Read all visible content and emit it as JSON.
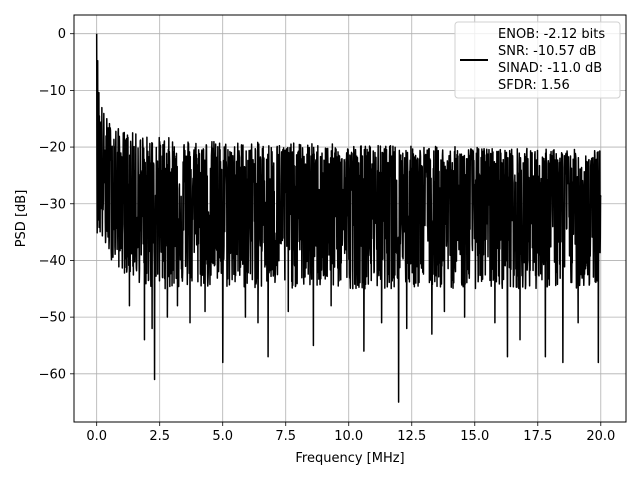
{
  "chart_data": {
    "type": "line",
    "title": "",
    "xlabel": "Frequency [MHz]",
    "ylabel": "PSD [dB]",
    "xlim": [
      -0.9,
      21.0
    ],
    "ylim": [
      -68.5,
      3.3
    ],
    "xticks": [
      0.0,
      2.5,
      5.0,
      7.5,
      10.0,
      12.5,
      15.0,
      17.5,
      20.0
    ],
    "xtick_labels": [
      "0.0",
      "2.5",
      "5.0",
      "7.5",
      "10.0",
      "12.5",
      "15.0",
      "17.5",
      "20.0"
    ],
    "yticks": [
      0,
      -10,
      -20,
      -30,
      -40,
      -50,
      -60
    ],
    "ytick_labels": [
      "0",
      "−10",
      "−20",
      "−30",
      "−40",
      "−50",
      "−60"
    ],
    "grid": true,
    "legend_position": "top-right",
    "series": [
      {
        "name": "ENOB: -2.12 bits\nSNR: -10.57 dB\nSINAD: -11.0 dB\nSFDR: 1.56",
        "color": "#000000",
        "n_points": 2048,
        "peak": {
          "x": 0.0,
          "y": 0.0
        },
        "envelope": [
          {
            "x": 0.0,
            "upper": 0.0,
            "mean": -12,
            "lower": -35
          },
          {
            "x": 0.1,
            "upper": -10,
            "mean": -22,
            "lower": -36
          },
          {
            "x": 0.3,
            "upper": -14,
            "mean": -26,
            "lower": -38
          },
          {
            "x": 0.6,
            "upper": -16,
            "mean": -28,
            "lower": -40
          },
          {
            "x": 1.0,
            "upper": -17,
            "mean": -29,
            "lower": -42
          },
          {
            "x": 2.0,
            "upper": -18,
            "mean": -30,
            "lower": -45
          },
          {
            "x": 5.0,
            "upper": -19,
            "mean": -30,
            "lower": -45
          },
          {
            "x": 10.0,
            "upper": -19.5,
            "mean": -30,
            "lower": -45
          },
          {
            "x": 15.0,
            "upper": -20,
            "mean": -30,
            "lower": -45
          },
          {
            "x": 20.0,
            "upper": -20.5,
            "mean": -30,
            "lower": -45
          }
        ],
        "deep_nulls": [
          {
            "x": 1.3,
            "y": -48
          },
          {
            "x": 1.9,
            "y": -54
          },
          {
            "x": 2.2,
            "y": -52
          },
          {
            "x": 2.3,
            "y": -61
          },
          {
            "x": 2.8,
            "y": -50
          },
          {
            "x": 3.2,
            "y": -48
          },
          {
            "x": 3.7,
            "y": -51
          },
          {
            "x": 4.3,
            "y": -49
          },
          {
            "x": 5.0,
            "y": -58
          },
          {
            "x": 5.9,
            "y": -50
          },
          {
            "x": 6.4,
            "y": -51
          },
          {
            "x": 6.8,
            "y": -57
          },
          {
            "x": 7.6,
            "y": -49
          },
          {
            "x": 8.6,
            "y": -55
          },
          {
            "x": 9.3,
            "y": -48
          },
          {
            "x": 10.6,
            "y": -56
          },
          {
            "x": 11.3,
            "y": -51
          },
          {
            "x": 11.98,
            "y": -65
          },
          {
            "x": 12.3,
            "y": -52
          },
          {
            "x": 13.3,
            "y": -53
          },
          {
            "x": 13.8,
            "y": -49
          },
          {
            "x": 14.6,
            "y": -50
          },
          {
            "x": 15.8,
            "y": -51
          },
          {
            "x": 16.3,
            "y": -57
          },
          {
            "x": 16.8,
            "y": -54
          },
          {
            "x": 17.8,
            "y": -57
          },
          {
            "x": 18.5,
            "y": -58
          },
          {
            "x": 19.1,
            "y": -51
          },
          {
            "x": 19.9,
            "y": -58
          }
        ]
      }
    ]
  }
}
